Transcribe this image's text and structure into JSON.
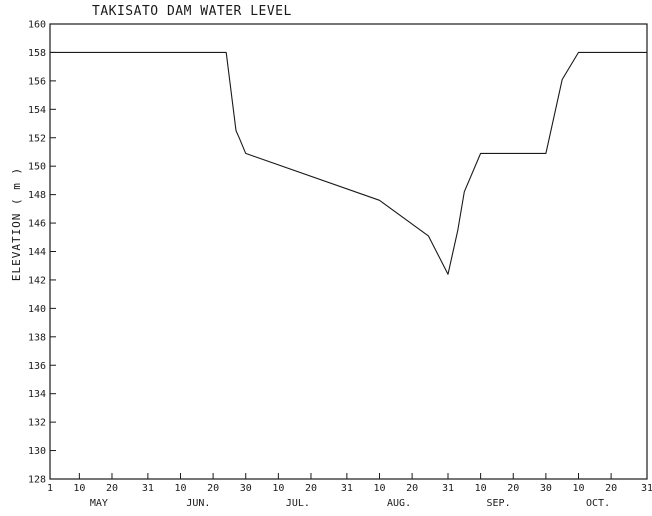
{
  "chart_data": {
    "type": "line",
    "title": "TAKISATO DAM WATER LEVEL",
    "xlabel": "",
    "ylabel": "ELEVATION ( m )",
    "ylim": [
      128,
      160
    ],
    "yticks": [
      128,
      130,
      132,
      134,
      136,
      138,
      140,
      142,
      144,
      146,
      148,
      150,
      152,
      154,
      156,
      158,
      160
    ],
    "xlim": [
      "05-01",
      "10-31"
    ],
    "xtick_labels": [
      "1",
      "10",
      "20",
      "31",
      "10",
      "20",
      "30",
      "10",
      "20",
      "31",
      "10",
      "20",
      "31",
      "10",
      "20",
      "30",
      "10",
      "20",
      "31"
    ],
    "month_labels": [
      "MAY",
      "JUN.",
      "JUL.",
      "AUG.",
      "SEP.",
      "OCT."
    ],
    "grid": false,
    "legend": "none",
    "line_color": "#1a1a1a",
    "series": [
      {
        "x": [
          "05-01",
          "06-24",
          "06-27",
          "06-28",
          "06-30",
          "08-10",
          "08-25",
          "08-31",
          "09-03",
          "09-05",
          "09-10",
          "09-30",
          "10-05",
          "10-10",
          "10-31"
        ],
        "values": [
          158.0,
          158.0,
          152.5,
          152.0,
          150.9,
          147.6,
          145.1,
          142.4,
          145.5,
          148.2,
          150.9,
          150.9,
          156.1,
          158.0,
          158.0
        ]
      }
    ]
  }
}
